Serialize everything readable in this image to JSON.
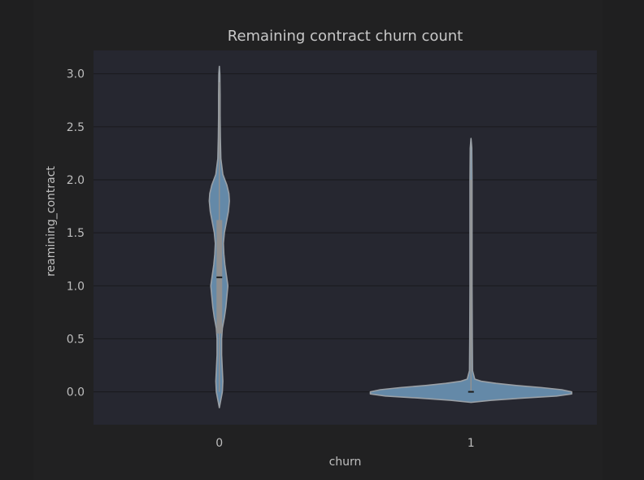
{
  "chart_data": {
    "type": "violin",
    "title": "Remaining contract churn count",
    "xlabel": "churn",
    "ylabel": "reamining_contract",
    "categories": [
      "0",
      "1"
    ],
    "yticks": [
      "0.0",
      "0.5",
      "1.0",
      "1.5",
      "2.0",
      "2.5",
      "3.0"
    ],
    "ylim": [
      -0.31,
      3.22
    ],
    "grid": true,
    "violins": [
      {
        "category": "0",
        "min": -0.15,
        "max": 3.07,
        "q1": 0.55,
        "median": 1.08,
        "q3": 1.62,
        "whisker_low": 0.0,
        "whisker_high": 2.92,
        "profile": [
          [
            -0.15,
            0.0
          ],
          [
            -0.05,
            0.008
          ],
          [
            0.0,
            0.012
          ],
          [
            0.1,
            0.014
          ],
          [
            0.2,
            0.012
          ],
          [
            0.35,
            0.009
          ],
          [
            0.5,
            0.009
          ],
          [
            0.6,
            0.012
          ],
          [
            0.7,
            0.02
          ],
          [
            0.8,
            0.026
          ],
          [
            0.9,
            0.03
          ],
          [
            1.0,
            0.034
          ],
          [
            1.1,
            0.028
          ],
          [
            1.2,
            0.022
          ],
          [
            1.3,
            0.018
          ],
          [
            1.4,
            0.016
          ],
          [
            1.5,
            0.02
          ],
          [
            1.6,
            0.028
          ],
          [
            1.7,
            0.036
          ],
          [
            1.8,
            0.04
          ],
          [
            1.87,
            0.038
          ],
          [
            1.95,
            0.03
          ],
          [
            2.05,
            0.014
          ],
          [
            2.2,
            0.006
          ],
          [
            2.4,
            0.004
          ],
          [
            2.6,
            0.003
          ],
          [
            2.8,
            0.003
          ],
          [
            3.0,
            0.002
          ],
          [
            3.07,
            0.0
          ]
        ]
      },
      {
        "category": "1",
        "min": -0.1,
        "max": 2.39,
        "q1": 0.0,
        "median": 0.0,
        "q3": 0.0,
        "whisker_low": 0.0,
        "whisker_high": 2.0,
        "profile": [
          [
            -0.1,
            0.0
          ],
          [
            -0.08,
            0.08
          ],
          [
            -0.06,
            0.2
          ],
          [
            -0.04,
            0.34
          ],
          [
            -0.02,
            0.4
          ],
          [
            0.0,
            0.4
          ],
          [
            0.02,
            0.36
          ],
          [
            0.04,
            0.28
          ],
          [
            0.06,
            0.18
          ],
          [
            0.08,
            0.1
          ],
          [
            0.1,
            0.04
          ],
          [
            0.12,
            0.015
          ],
          [
            0.2,
            0.006
          ],
          [
            0.5,
            0.005
          ],
          [
            1.0,
            0.004
          ],
          [
            1.5,
            0.004
          ],
          [
            2.0,
            0.004
          ],
          [
            2.3,
            0.003
          ],
          [
            2.39,
            0.0
          ]
        ]
      }
    ]
  },
  "colors": {
    "page_background": "#1f1f20",
    "figure_background": "#212122",
    "plot_background": "#262730",
    "grid": "#1b1b1f",
    "violin_fill": "#6489a8",
    "violin_edge": "#9aa0a6",
    "inner_box": "#8f8f8f",
    "median_mark": "#1c1c1c",
    "text": "#c4c4c4"
  }
}
